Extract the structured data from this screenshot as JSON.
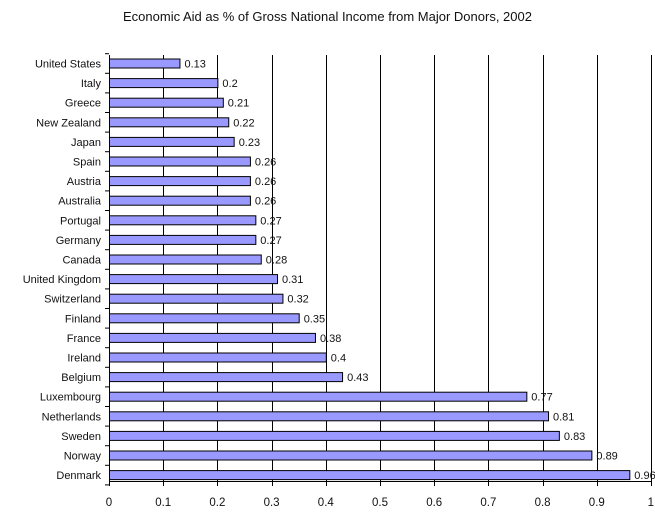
{
  "chart_data": {
    "type": "bar",
    "orientation": "horizontal",
    "title": "Economic Aid as % of Gross National Income from Major Donors, 2002",
    "xlabel": "",
    "ylabel": "",
    "xlim": [
      0,
      1
    ],
    "xticks": [
      0,
      0.1,
      0.2,
      0.3,
      0.4,
      0.5,
      0.6,
      0.7,
      0.8,
      0.9,
      1
    ],
    "xtick_labels": [
      "0",
      "0.1",
      "0.2",
      "0.3",
      "0.4",
      "0.5",
      "0.6",
      "0.7",
      "0.8",
      "0.9",
      "1"
    ],
    "grid": "vertical",
    "categories": [
      "United States",
      "Italy",
      "Greece",
      "New Zealand",
      "Japan",
      "Spain",
      "Austria",
      "Australia",
      "Portugal",
      "Germany",
      "Canada",
      "United Kingdom",
      "Switzerland",
      "Finland",
      "France",
      "Ireland",
      "Belgium",
      "Luxembourg",
      "Netherlands",
      "Sweden",
      "Norway",
      "Denmark"
    ],
    "values": [
      0.13,
      0.2,
      0.21,
      0.22,
      0.23,
      0.26,
      0.26,
      0.26,
      0.27,
      0.27,
      0.28,
      0.31,
      0.32,
      0.35,
      0.38,
      0.4,
      0.43,
      0.77,
      0.81,
      0.83,
      0.89,
      0.96
    ],
    "value_labels": [
      "0.13",
      "0.2",
      "0.21",
      "0.22",
      "0.23",
      "0.26",
      "0.26",
      "0.26",
      "0.27",
      "0.27",
      "0.28",
      "0.31",
      "0.32",
      "0.35",
      "0.38",
      "0.4",
      "0.43",
      "0.77",
      "0.81",
      "0.83",
      "0.89",
      "0.96"
    ],
    "bar_color": "#9999ff",
    "bar_edge_color": "#000000"
  }
}
